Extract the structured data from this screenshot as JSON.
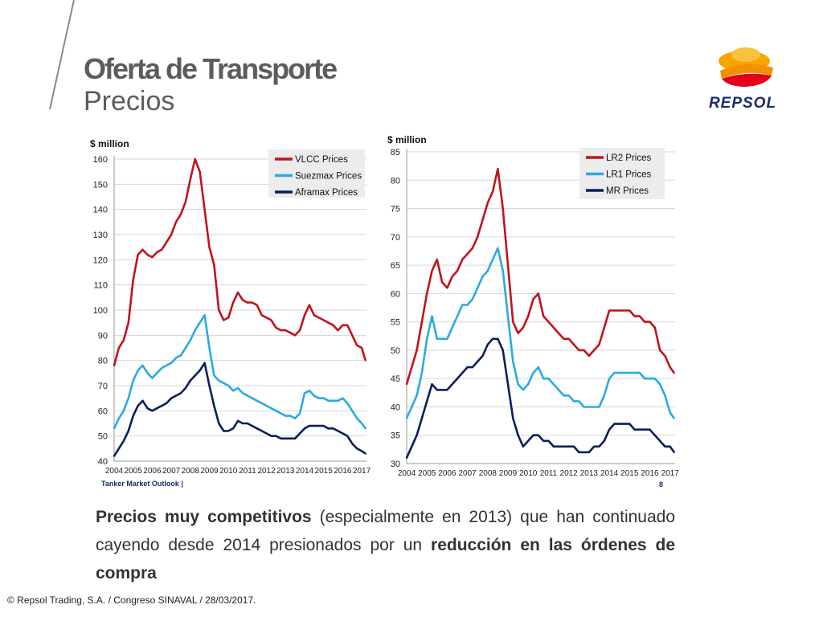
{
  "header": {
    "title": "Oferta de Transporte",
    "subtitle": "Precios"
  },
  "logo": {
    "brand": "REPSOL",
    "colors": [
      "#f7a600",
      "#e2001a",
      "#1a2a6c"
    ]
  },
  "body_text": {
    "bold1": "Precios muy competitivos",
    "normal1": " (especialmente en 2013) que han continuado cayendo desde 2014 presionados por un ",
    "bold2": "reducción en las órdenes de compra"
  },
  "footer": {
    "text": "© Repsol Trading, S.A. /  Congreso SINAVAL / 28/03/2017."
  },
  "chart_data": [
    {
      "type": "line",
      "ylabel": "$ million",
      "ylim": [
        40,
        160
      ],
      "yticks": [
        160,
        150,
        140,
        130,
        120,
        110,
        100,
        90,
        80,
        70,
        60,
        50,
        40
      ],
      "xlim": [
        2004,
        2017.25
      ],
      "xticks": [
        "2004",
        "2005",
        "2006",
        "2007",
        "2008",
        "2009",
        "2010",
        "2011",
        "2012",
        "2013",
        "2014",
        "2015",
        "2016",
        "2017"
      ],
      "legend_position": "top-right",
      "source": "Tanker Market Outlook |",
      "grid": true,
      "x": [
        2004,
        2004.25,
        2004.5,
        2004.75,
        2005,
        2005.25,
        2005.5,
        2005.75,
        2006,
        2006.25,
        2006.5,
        2006.75,
        2007,
        2007.25,
        2007.5,
        2007.75,
        2008,
        2008.25,
        2008.5,
        2008.75,
        2009,
        2009.25,
        2009.5,
        2009.75,
        2010,
        2010.25,
        2010.5,
        2010.75,
        2011,
        2011.25,
        2011.5,
        2011.75,
        2012,
        2012.25,
        2012.5,
        2012.75,
        2013,
        2013.25,
        2013.5,
        2013.75,
        2014,
        2014.25,
        2014.5,
        2014.75,
        2015,
        2015.25,
        2015.5,
        2015.75,
        2016,
        2016.25,
        2016.5,
        2016.75,
        2017,
        2017.2
      ],
      "series": [
        {
          "name": "VLCC Prices",
          "color": "#c0141c",
          "values": [
            78,
            85,
            88,
            95,
            112,
            122,
            124,
            122,
            121,
            123,
            124,
            127,
            130,
            135,
            138,
            143,
            152,
            160,
            155,
            140,
            125,
            118,
            100,
            96,
            97,
            103,
            107,
            104,
            103,
            103,
            102,
            98,
            97,
            96,
            93,
            92,
            92,
            91,
            90,
            92,
            98,
            102,
            98,
            97,
            96,
            95,
            94,
            92,
            94,
            94,
            90,
            86,
            85,
            80
          ]
        },
        {
          "name": "Suezmax Prices",
          "color": "#29abe2",
          "values": [
            53,
            57,
            60,
            65,
            72,
            76,
            78,
            75,
            73,
            75,
            77,
            78,
            79,
            81,
            82,
            85,
            88,
            92,
            95,
            98,
            85,
            74,
            72,
            71,
            70,
            68,
            69,
            67,
            66,
            65,
            64,
            63,
            62,
            61,
            60,
            59,
            58,
            58,
            57,
            59,
            67,
            68,
            66,
            65,
            65,
            64,
            64,
            64,
            65,
            63,
            60,
            57,
            55,
            53
          ]
        },
        {
          "name": "Aframax Prices",
          "color": "#0a1f5c",
          "values": [
            42,
            45,
            48,
            52,
            58,
            62,
            64,
            61,
            60,
            61,
            62,
            63,
            65,
            66,
            67,
            69,
            72,
            74,
            76,
            79,
            70,
            62,
            55,
            52,
            52,
            53,
            56,
            55,
            55,
            54,
            53,
            52,
            51,
            50,
            50,
            49,
            49,
            49,
            49,
            51,
            53,
            54,
            54,
            54,
            54,
            53,
            53,
            52,
            51,
            50,
            47,
            45,
            44,
            43
          ]
        }
      ]
    },
    {
      "type": "line",
      "ylabel": "$ million",
      "ylim": [
        30,
        85
      ],
      "yticks": [
        85,
        80,
        75,
        70,
        65,
        60,
        55,
        50,
        45,
        40,
        35,
        30
      ],
      "xlim": [
        2004,
        2017.25
      ],
      "xticks": [
        "2004",
        "2005",
        "2006",
        "2007",
        "2008",
        "2009",
        "2010",
        "2011",
        "2012",
        "2013",
        "2014",
        "2015",
        "2016",
        "2017"
      ],
      "legend_position": "top-right",
      "page_number": "8",
      "grid": true,
      "x": [
        2004,
        2004.25,
        2004.5,
        2004.75,
        2005,
        2005.25,
        2005.5,
        2005.75,
        2006,
        2006.25,
        2006.5,
        2006.75,
        2007,
        2007.25,
        2007.5,
        2007.75,
        2008,
        2008.25,
        2008.5,
        2008.75,
        2009,
        2009.25,
        2009.5,
        2009.75,
        2010,
        2010.25,
        2010.5,
        2010.75,
        2011,
        2011.25,
        2011.5,
        2011.75,
        2012,
        2012.25,
        2012.5,
        2012.75,
        2013,
        2013.25,
        2013.5,
        2013.75,
        2014,
        2014.25,
        2014.5,
        2014.75,
        2015,
        2015.25,
        2015.5,
        2015.75,
        2016,
        2016.25,
        2016.5,
        2016.75,
        2017,
        2017.2
      ],
      "series": [
        {
          "name": "LR2 Prices",
          "color": "#c0141c",
          "values": [
            44,
            47,
            50,
            55,
            60,
            64,
            66,
            62,
            61,
            63,
            64,
            66,
            67,
            68,
            70,
            73,
            76,
            78,
            82,
            75,
            65,
            55,
            53,
            54,
            56,
            59,
            60,
            56,
            55,
            54,
            53,
            52,
            52,
            51,
            50,
            50,
            49,
            50,
            51,
            54,
            57,
            57,
            57,
            57,
            57,
            56,
            56,
            55,
            55,
            54,
            50,
            49,
            47,
            46
          ]
        },
        {
          "name": "LR1 Prices",
          "color": "#29abe2",
          "values": [
            38,
            40,
            42,
            46,
            52,
            56,
            52,
            52,
            52,
            54,
            56,
            58,
            58,
            59,
            61,
            63,
            64,
            66,
            68,
            64,
            56,
            48,
            44,
            43,
            44,
            46,
            47,
            45,
            45,
            44,
            43,
            42,
            42,
            41,
            41,
            40,
            40,
            40,
            40,
            42,
            45,
            46,
            46,
            46,
            46,
            46,
            46,
            45,
            45,
            45,
            44,
            42,
            39,
            38
          ]
        },
        {
          "name": "MR Prices",
          "color": "#0a1f5c",
          "values": [
            31,
            33,
            35,
            38,
            41,
            44,
            43,
            43,
            43,
            44,
            45,
            46,
            47,
            47,
            48,
            49,
            51,
            52,
            52,
            50,
            44,
            38,
            35,
            33,
            34,
            35,
            35,
            34,
            34,
            33,
            33,
            33,
            33,
            33,
            32,
            32,
            32,
            33,
            33,
            34,
            36,
            37,
            37,
            37,
            37,
            36,
            36,
            36,
            36,
            35,
            34,
            33,
            33,
            32
          ]
        }
      ]
    }
  ]
}
